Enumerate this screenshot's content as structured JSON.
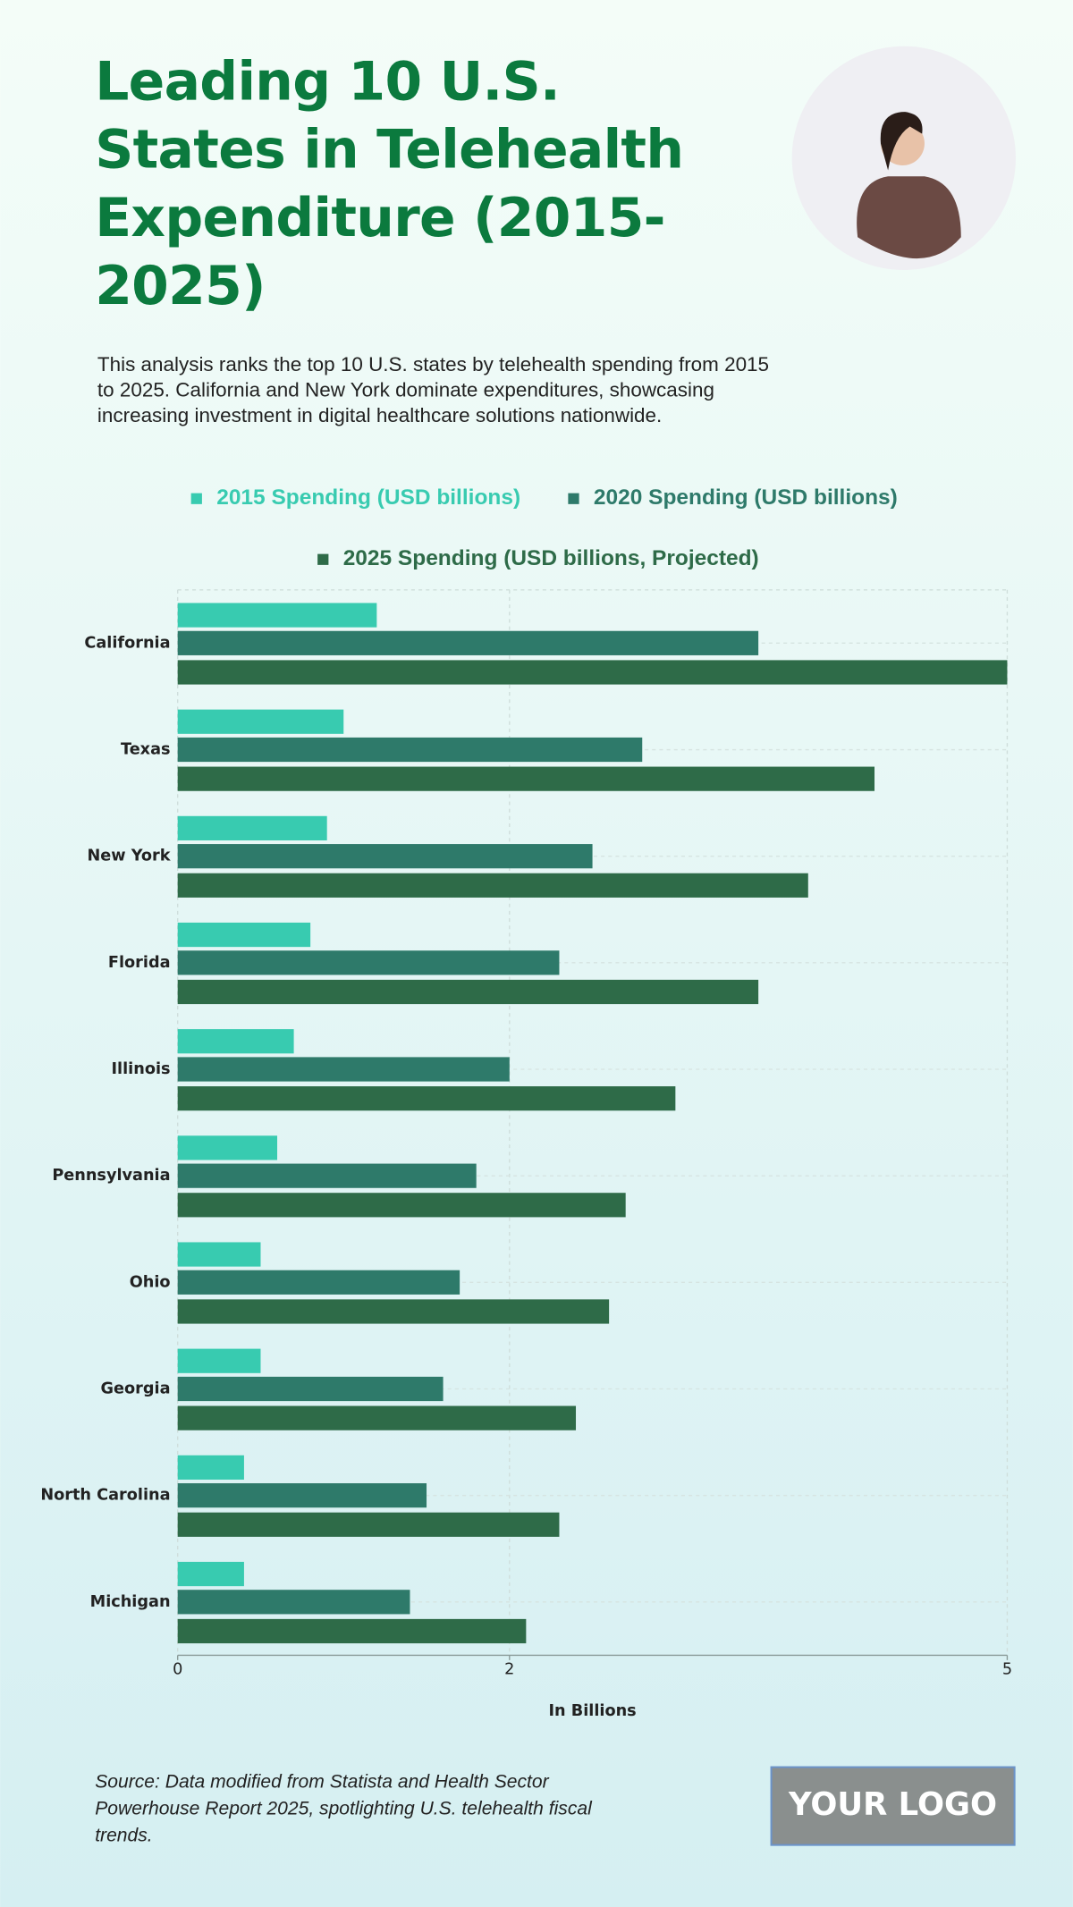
{
  "chart_data": {
    "type": "bar",
    "orientation": "horizontal",
    "title": "Leading 10 U.S. States in Telehealth Expenditure (2015-2025)",
    "subtitle": "This analysis ranks the top 10 U.S. states by telehealth spending from 2015 to 2025. California and New York dominate expenditures, showcasing increasing investment in digital healthcare solutions nationwide.",
    "categories": [
      "California",
      "Texas",
      "New York",
      "Florida",
      "Illinois",
      "Pennsylvania",
      "Ohio",
      "Georgia",
      "North Carolina",
      "Michigan"
    ],
    "series": [
      {
        "name": "2015 Spending (USD billions)",
        "color": "#38cbb0",
        "values": [
          1.2,
          1.0,
          0.9,
          0.8,
          0.7,
          0.6,
          0.5,
          0.5,
          0.4,
          0.4
        ]
      },
      {
        "name": "2020 Spending (USD billions)",
        "color": "#2e7a6a",
        "values": [
          3.5,
          2.8,
          2.5,
          2.3,
          2.0,
          1.8,
          1.7,
          1.6,
          1.5,
          1.4
        ]
      },
      {
        "name": "2025 Spending (USD billions, Projected)",
        "color": "#2e6b48",
        "values": [
          5.0,
          4.2,
          3.8,
          3.5,
          3.0,
          2.7,
          2.6,
          2.4,
          2.3,
          2.1
        ]
      }
    ],
    "xlabel": "In Billions",
    "xlim": [
      0,
      5
    ],
    "xticks": [
      0,
      2,
      5
    ],
    "grid": true,
    "source": "Source: Data modified from Statista and Health Sector Powerhouse Report 2025, spotlighting U.S. telehealth fiscal trends."
  },
  "logo": "YOUR LOGO"
}
